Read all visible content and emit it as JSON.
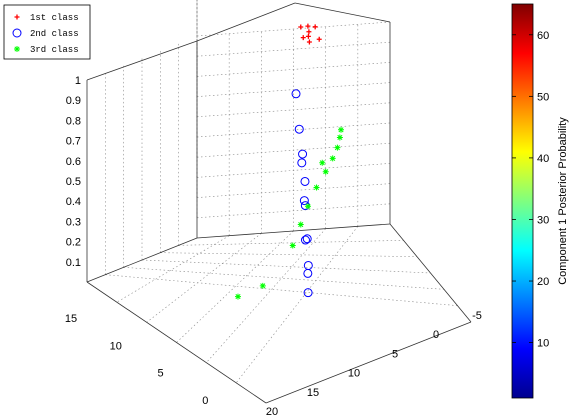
{
  "chart_data": {
    "type": "scatter",
    "title": "",
    "xlabel": "",
    "ylabel": "",
    "zlabel": "",
    "x_ticks": [
      "-5",
      "0",
      "5",
      "10",
      "15",
      "20"
    ],
    "y_ticks": [
      "15",
      "10",
      "5",
      "0",
      "-5"
    ],
    "z_ticks": [
      "0.1",
      "0.2",
      "0.3",
      "0.4",
      "0.5",
      "0.6",
      "0.7",
      "0.8",
      "0.9",
      "1"
    ],
    "grid": true,
    "legend_position": "top-left",
    "series": [
      {
        "name": "1st class",
        "marker": "plus",
        "color": "#ff0000",
        "points": [
          [
            -8.4,
            14.1,
            0.88
          ],
          [
            -8.0,
            13.8,
            0.87
          ],
          [
            -8.8,
            14.6,
            0.89
          ],
          [
            -7.6,
            13.3,
            0.86
          ],
          [
            -9.1,
            13.9,
            0.9
          ],
          [
            -8.3,
            15.1,
            0.88
          ],
          [
            -7.9,
            14.4,
            0.85
          ],
          [
            -8.6,
            12.9,
            0.87
          ]
        ]
      },
      {
        "name": "2nd class",
        "marker": "circle",
        "color": "#0000ff",
        "points": [
          [
            5.8,
            1.2,
            0.1
          ],
          [
            5.4,
            1.6,
            0.18
          ],
          [
            6.2,
            0.8,
            0.25
          ],
          [
            5.2,
            2.1,
            0.33
          ],
          [
            6.8,
            0.4,
            0.4
          ],
          [
            4.6,
            2.8,
            0.5
          ],
          [
            7.4,
            0.1,
            0.58
          ],
          [
            4.1,
            3.6,
            0.66
          ],
          [
            8.0,
            -0.4,
            0.72
          ],
          [
            3.6,
            4.4,
            0.8
          ],
          [
            8.9,
            -0.9,
            0.88
          ],
          [
            3.2,
            5.2,
            0.95
          ]
        ]
      },
      {
        "name": "3rd class",
        "marker": "asterisk",
        "color": "#00ff00",
        "points": [
          [
            1.2,
            1.0,
            0.85
          ],
          [
            1.8,
            0.6,
            0.83
          ],
          [
            2.6,
            0.2,
            0.8
          ],
          [
            3.4,
            0.1,
            0.76
          ],
          [
            4.2,
            0.3,
            0.7
          ],
          [
            5.0,
            0.8,
            0.62
          ],
          [
            5.6,
            1.4,
            0.52
          ],
          [
            6.0,
            2.0,
            0.42
          ],
          [
            6.3,
            2.8,
            0.3
          ],
          [
            8.5,
            4.8,
            0.08
          ],
          [
            10.6,
            6.2,
            0.02
          ],
          [
            2.2,
            2.6,
            0.66
          ]
        ]
      }
    ],
    "colorbar": {
      "label": "Component 1 Posterior Probability",
      "ticks": [
        "10",
        "20",
        "30",
        "40",
        "50",
        "60"
      ],
      "range": [
        1,
        65
      ],
      "colormap": "jet"
    },
    "colors": {
      "class1": "#ff0000",
      "class2": "#0000ff",
      "class3": "#00ff00"
    }
  }
}
